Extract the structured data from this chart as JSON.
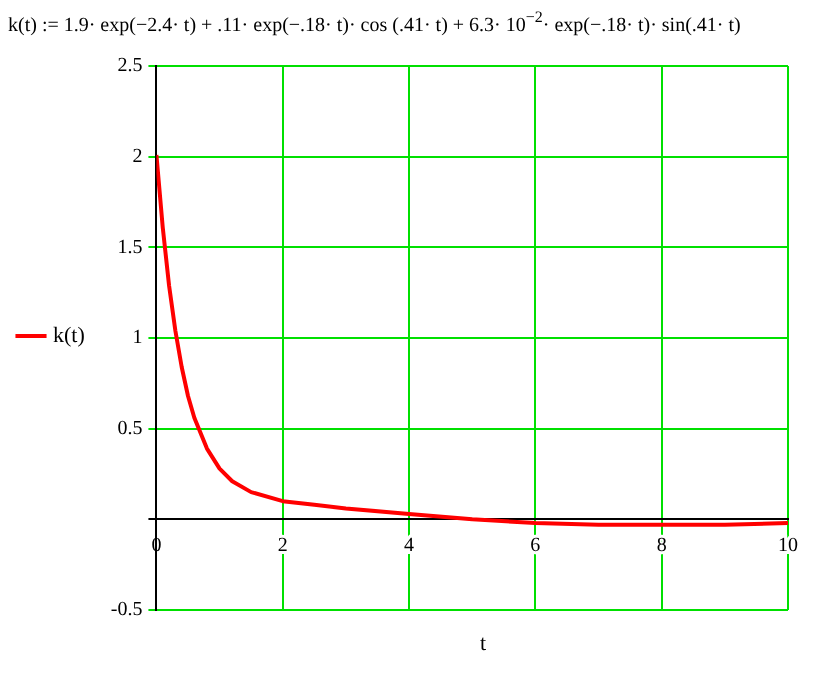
{
  "chart_data": {
    "type": "line",
    "title": "k(t) := 1.9· exp(−2.4· t) + .11· exp(−.18· t)· cos (.41· t) + 6.3· 10$^{−2}$· exp(−.18· t)· sin(.41· t)",
    "xlabel": "t",
    "x": [
      0,
      0.1,
      0.2,
      0.3,
      0.4,
      0.5,
      0.6,
      0.8,
      1,
      1.2,
      1.5,
      2,
      2.5,
      3,
      4,
      5,
      6,
      7,
      8,
      9,
      10
    ],
    "series": [
      {
        "name": "k(t)",
        "color": "#ff0000",
        "values": [
          2.01,
          1.61,
          1.29,
          1.04,
          0.84,
          0.68,
          0.56,
          0.39,
          0.28,
          0.21,
          0.15,
          0.1,
          0.08,
          0.06,
          0.03,
          0,
          -0.02,
          -0.03,
          -0.03,
          -0.03,
          -0.02
        ]
      }
    ],
    "xlim": [
      0,
      10
    ],
    "xticks": [
      0,
      2,
      4,
      6,
      8,
      10
    ],
    "ylim": [
      -0.5,
      2.5
    ],
    "yticks": [
      -0.5,
      {
        "value": 0,
        "label": null
      },
      0.5,
      1,
      1.5,
      2,
      2.5
    ],
    "grid": true,
    "legend": "left",
    "marker": "none",
    "line_style": "solid"
  }
}
